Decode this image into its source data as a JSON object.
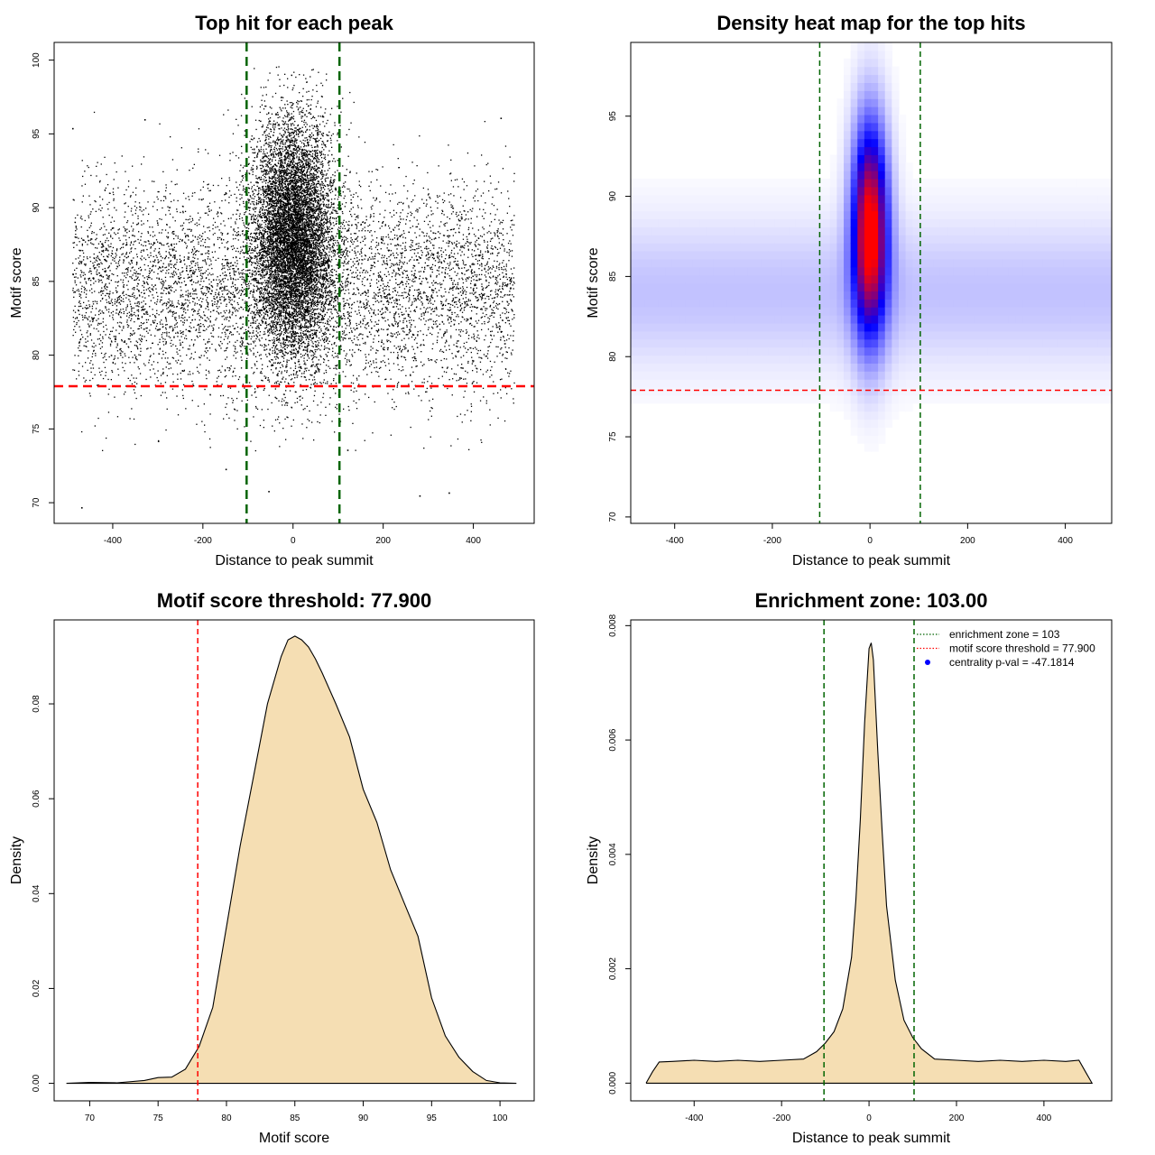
{
  "chart_data": [
    {
      "id": "scatter",
      "type": "scatter",
      "title": "Top hit for each peak",
      "xlabel": "Distance to peak summit",
      "ylabel": "Motif score",
      "xlim": [
        -530,
        535
      ],
      "ylim": [
        68.6,
        101.2
      ],
      "xticks": [
        -400,
        -200,
        0,
        200,
        400
      ],
      "yticks": [
        70,
        75,
        80,
        85,
        90,
        95,
        100
      ],
      "vlines": [
        {
          "x": -103,
          "color": "#006400",
          "style": "dashed"
        },
        {
          "x": 103,
          "color": "#006400",
          "style": "dashed"
        }
      ],
      "hlines": [
        {
          "y": 77.9,
          "color": "#ff0000",
          "style": "dashed"
        }
      ],
      "point_clouds": [
        {
          "description": "uniform background hits",
          "x_range": [
            -490,
            490
          ],
          "y_mean": 84.5,
          "y_sd": 3.5,
          "n": 6500
        },
        {
          "description": "central enriched hits",
          "x_mean": 0,
          "x_sd": 45,
          "y_mean": 88,
          "y_sd": 4,
          "n": 9000
        }
      ],
      "outliers": [
        [
          -470,
          69.7
        ],
        [
          -300,
          74.2
        ],
        [
          -150,
          72.3
        ],
        [
          120,
          73.6
        ],
        [
          280,
          70.5
        ],
        [
          345,
          70.7
        ],
        [
          -55,
          70.8
        ],
        [
          -330,
          96.0
        ],
        [
          -490,
          95.4
        ],
        [
          460,
          96.1
        ]
      ]
    },
    {
      "id": "heatmap",
      "type": "heatmap",
      "title": "Density heat map for the top hits",
      "xlabel": "Distance to peak summit",
      "ylabel": "Motif score",
      "xlim": [
        -490,
        495
      ],
      "ylim": [
        69.6,
        99.6
      ],
      "xticks": [
        -400,
        -200,
        0,
        200,
        400
      ],
      "yticks": [
        70,
        75,
        80,
        85,
        90,
        95
      ],
      "colormap": [
        "#ffffff",
        "#0000ff",
        "#ff0000"
      ],
      "density_peak": {
        "x": 0,
        "y": 88,
        "x_sd": 25,
        "y_sd": 4.5
      },
      "background_band": {
        "y_mean": 84,
        "y_sd": 3.2
      },
      "vlines": [
        {
          "x": -103,
          "color": "#006400",
          "style": "dashed"
        },
        {
          "x": 103,
          "color": "#006400",
          "style": "dashed"
        }
      ],
      "hlines": [
        {
          "y": 77.9,
          "color": "#ff0000",
          "style": "dashed"
        }
      ]
    },
    {
      "id": "score_density",
      "type": "area",
      "title": "Motif score threshold: 77.900",
      "xlabel": "Motif score",
      "ylabel": "Density",
      "xlim": [
        67.4,
        102.5
      ],
      "ylim": [
        -0.0037,
        0.0977
      ],
      "xticks": [
        70,
        75,
        80,
        85,
        90,
        95,
        100
      ],
      "yticks": [
        0.0,
        0.02,
        0.04,
        0.06,
        0.08
      ],
      "ytick_labels": [
        "0.00",
        "0.02",
        "0.04",
        "0.06",
        "0.08"
      ],
      "fill_color": "#f5deb3",
      "x": [
        68.3,
        70,
        72,
        74,
        75,
        76,
        77,
        78,
        79,
        80,
        81,
        82,
        83,
        84,
        84.5,
        85,
        85.5,
        86,
        86.5,
        87,
        88,
        89,
        90,
        91,
        92,
        93,
        94,
        95,
        96,
        97,
        98,
        99,
        100,
        101.2
      ],
      "y": [
        0.0,
        0.0002,
        0.0001,
        0.0006,
        0.0012,
        0.0013,
        0.003,
        0.0078,
        0.016,
        0.033,
        0.05,
        0.065,
        0.08,
        0.09,
        0.0935,
        0.0943,
        0.0935,
        0.092,
        0.0895,
        0.0865,
        0.08,
        0.073,
        0.062,
        0.055,
        0.045,
        0.038,
        0.031,
        0.018,
        0.01,
        0.0055,
        0.0025,
        0.0006,
        0.0001,
        0.0
      ],
      "vlines": [
        {
          "x": 77.9,
          "color": "#ff0000",
          "style": "dashed"
        }
      ]
    },
    {
      "id": "position_density",
      "type": "area",
      "title": "Enrichment zone: 103.00",
      "xlabel": "Distance to peak summit",
      "ylabel": "Density",
      "xlim": [
        -545,
        555
      ],
      "ylim": [
        -0.00031,
        0.0081
      ],
      "xticks": [
        -400,
        -200,
        0,
        200,
        400
      ],
      "yticks": [
        0.0,
        0.002,
        0.004,
        0.006,
        0.008
      ],
      "ytick_labels": [
        "0.000",
        "0.002",
        "0.004",
        "0.006",
        "0.008"
      ],
      "fill_color": "#f5deb3",
      "x": [
        -510,
        -495,
        -480,
        -450,
        -400,
        -350,
        -300,
        -250,
        -200,
        -150,
        -120,
        -100,
        -80,
        -60,
        -40,
        -30,
        -20,
        -10,
        0,
        5,
        10,
        20,
        30,
        40,
        60,
        80,
        100,
        120,
        150,
        200,
        250,
        300,
        350,
        400,
        450,
        480,
        495,
        510
      ],
      "y": [
        0.0,
        0.0002,
        0.00037,
        0.00038,
        0.0004,
        0.00038,
        0.0004,
        0.00038,
        0.0004,
        0.00042,
        0.00055,
        0.0007,
        0.0009,
        0.0013,
        0.0022,
        0.0032,
        0.0046,
        0.0063,
        0.0076,
        0.0077,
        0.0074,
        0.0058,
        0.0044,
        0.0031,
        0.0018,
        0.0011,
        0.0008,
        0.0006,
        0.00042,
        0.0004,
        0.00038,
        0.0004,
        0.00038,
        0.0004,
        0.00038,
        0.0004,
        0.0002,
        0.0
      ],
      "vlines": [
        {
          "x": -103,
          "color": "#006400",
          "style": "dashed"
        },
        {
          "x": 103,
          "color": "#006400",
          "style": "dashed"
        }
      ],
      "legend": {
        "position": "top-right",
        "entries": [
          {
            "label": "enrichment zone = 103",
            "kind": "dotted-line",
            "color": "#006400"
          },
          {
            "label": "motif score threshold = 77.900",
            "kind": "dotted-line",
            "color": "#ff0000"
          },
          {
            "label": "centrality p-val = -47.1814",
            "kind": "point",
            "color": "#0000ff"
          }
        ]
      }
    }
  ]
}
